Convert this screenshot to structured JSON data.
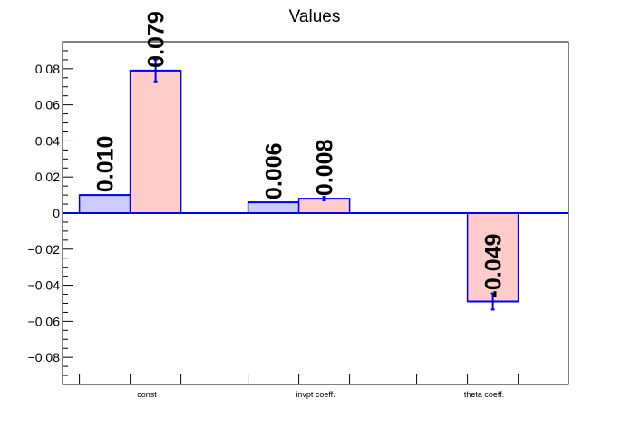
{
  "chart_data": {
    "type": "bar",
    "title": "Values",
    "xlabel": "",
    "ylabel": "",
    "categories": [
      "const",
      "invpt coeff.",
      "theta coeff."
    ],
    "ylim": [
      -0.095,
      0.095
    ],
    "yticks": [
      "0.08",
      "0.06",
      "0.04",
      "0.02",
      "0",
      "−0.02",
      "−0.04",
      "−0.06",
      "−0.08"
    ],
    "ytick_values": [
      0.08,
      0.06,
      0.04,
      0.02,
      0,
      -0.02,
      -0.04,
      -0.06,
      -0.08
    ],
    "grid": false,
    "series": [
      {
        "fill": "#ccccff",
        "edge": "#0000ee",
        "values": [
          0.01,
          0.006,
          null
        ],
        "errors": [
          null,
          null,
          null
        ],
        "labels": [
          "0.010",
          "0.006",
          ""
        ]
      },
      {
        "fill": "#ffcccc",
        "edge": "#0000ee",
        "values": [
          0.079,
          0.008,
          -0.049
        ],
        "errors": [
          0.006,
          0.001,
          0.0045
        ],
        "labels": [
          "0.079",
          "0.008",
          "-0.049"
        ]
      }
    ],
    "zero_line_color": "#0000ee"
  }
}
